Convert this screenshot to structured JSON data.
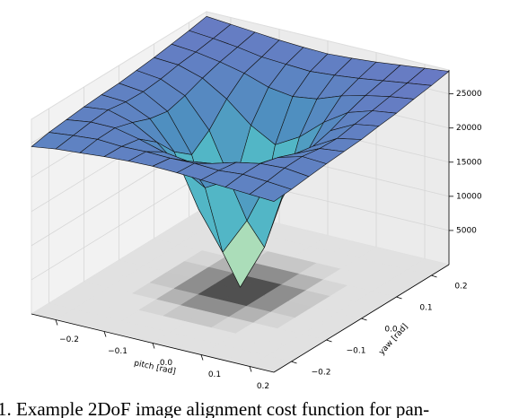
{
  "chart_data": {
    "type": "surface3d",
    "xlabel": "pitch [rad]",
    "ylabel": "yaw [rad]",
    "x": [
      -0.25,
      -0.2,
      -0.15,
      -0.1,
      -0.05,
      0,
      0.05,
      0.1,
      0.15,
      0.2,
      0.25
    ],
    "y": [
      -0.25,
      -0.2,
      -0.15,
      -0.1,
      -0.05,
      0,
      0.05,
      0.1,
      0.15,
      0.2,
      0.25
    ],
    "z": [
      [
        24500,
        25000,
        25300,
        25600,
        25800,
        25900,
        25800,
        25600,
        25400,
        25200,
        25000
      ],
      [
        25000,
        25400,
        25700,
        25500,
        25600,
        25500,
        25600,
        25400,
        25700,
        25500,
        25200
      ],
      [
        25300,
        25800,
        25800,
        25000,
        24000,
        23500,
        24000,
        25000,
        25700,
        25900,
        25500
      ],
      [
        25600,
        26000,
        25000,
        23000,
        20000,
        18000,
        20000,
        23000,
        25000,
        26000,
        25800
      ],
      [
        25800,
        25600,
        24000,
        20000,
        12500,
        7000,
        12500,
        20000,
        24000,
        25600,
        26000
      ],
      [
        25900,
        25500,
        23500,
        18000,
        7000,
        300,
        7000,
        18000,
        23500,
        25500,
        26200
      ],
      [
        26200,
        25800,
        24200,
        20000,
        12500,
        7000,
        12500,
        20000,
        24200,
        26000,
        26600
      ],
      [
        26500,
        26300,
        25200,
        23000,
        20000,
        18000,
        20000,
        23000,
        25300,
        26400,
        26900
      ],
      [
        26900,
        26600,
        26000,
        25200,
        24000,
        23500,
        24000,
        25300,
        26200,
        26900,
        27400
      ],
      [
        27300,
        27000,
        26600,
        26000,
        25800,
        25600,
        25900,
        26300,
        26800,
        27300,
        27800
      ],
      [
        27800,
        27500,
        27200,
        26900,
        26700,
        26600,
        26800,
        27100,
        27500,
        27900,
        28300
      ]
    ],
    "xlim": [
      -0.25,
      0.25
    ],
    "ylim": [
      -0.25,
      0.25
    ],
    "zlim": [
      0,
      28500
    ],
    "xticks": [
      {
        "value": -0.2,
        "label": "−0.2"
      },
      {
        "value": -0.1,
        "label": "−0.1"
      },
      {
        "value": 0,
        "label": "0.0"
      },
      0.1,
      0.2
    ],
    "yticks": [
      {
        "value": -0.2,
        "label": "−0.2"
      },
      {
        "value": -0.1,
        "label": "−0.1"
      },
      {
        "value": 0,
        "label": "0.0"
      },
      0.1,
      0.2
    ],
    "zticks": [
      5000,
      10000,
      15000,
      20000,
      25000
    ],
    "colormap": [
      "#ffffcc",
      "#a6dbb8",
      "#52b7c6",
      "#4f8fc0",
      "#6b78c4"
    ],
    "contour_floor": true,
    "grid": true
  },
  "caption": "1. Example 2DoF image alignment cost function for pan-"
}
